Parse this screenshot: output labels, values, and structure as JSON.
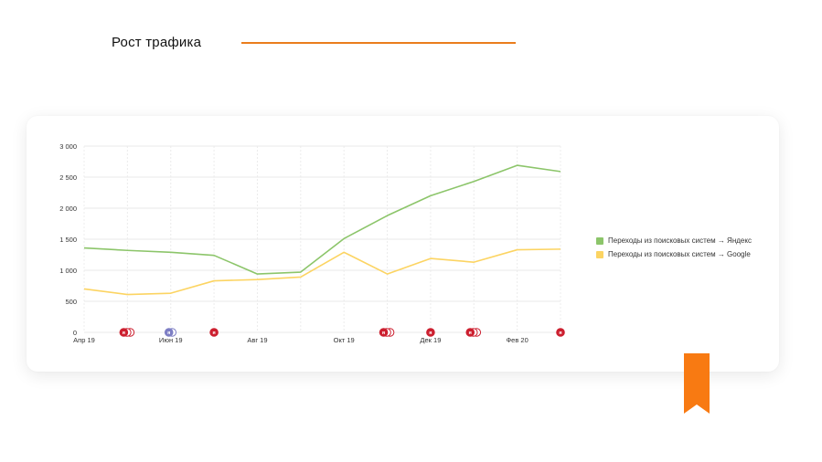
{
  "heading": {
    "title": "Рост трафика"
  },
  "colors": {
    "accent": "#ea7d1c",
    "yandex": "#8cc56a",
    "google": "#fcd462",
    "marker_red": "#cc1f2f",
    "marker_purple": "#7d7ec4"
  },
  "chart_data": {
    "type": "line",
    "x": [
      0,
      1,
      2,
      3,
      4,
      5,
      6,
      7,
      8,
      9,
      10,
      11
    ],
    "x_tick_labels": [
      {
        "at": 0,
        "label": "Апр 19"
      },
      {
        "at": 2,
        "label": "Июн 19"
      },
      {
        "at": 4,
        "label": "Авг 19"
      },
      {
        "at": 6,
        "label": "Окт 19"
      },
      {
        "at": 8,
        "label": "Дек 19"
      },
      {
        "at": 10,
        "label": "Фев 20"
      }
    ],
    "ylim": [
      0,
      3000
    ],
    "y_ticks": [
      {
        "value": 0,
        "label": "0"
      },
      {
        "value": 500,
        "label": "500"
      },
      {
        "value": 1000,
        "label": "1 000"
      },
      {
        "value": 1500,
        "label": "1 500"
      },
      {
        "value": 2000,
        "label": "2 000"
      },
      {
        "value": 2500,
        "label": "2 500"
      },
      {
        "value": 3000,
        "label": "3 000"
      }
    ],
    "grid": true,
    "legend_position": "right",
    "series": [
      {
        "name": "Переходы из поисковых систем → Яндекс",
        "color": "#8cc56a",
        "values": [
          1360,
          1320,
          1290,
          1240,
          940,
          970,
          1510,
          1880,
          2200,
          2430,
          2690,
          2590
        ]
      },
      {
        "name": "Переходы из поисковых систем → Google",
        "color": "#fcd462",
        "values": [
          700,
          610,
          630,
          830,
          850,
          890,
          1290,
          940,
          1190,
          1130,
          1330,
          1340
        ]
      }
    ],
    "annotations": [
      {
        "x": 1,
        "count": 3,
        "color": "red"
      },
      {
        "x": 2,
        "count": 2,
        "color": "purple"
      },
      {
        "x": 3,
        "count": 1,
        "color": "red"
      },
      {
        "x": 7,
        "count": 3,
        "color": "red"
      },
      {
        "x": 8,
        "count": 1,
        "color": "red"
      },
      {
        "x": 9,
        "count": 3,
        "color": "red"
      },
      {
        "x": 11,
        "count": 1,
        "color": "red"
      }
    ],
    "annotation_glyph": "я"
  }
}
